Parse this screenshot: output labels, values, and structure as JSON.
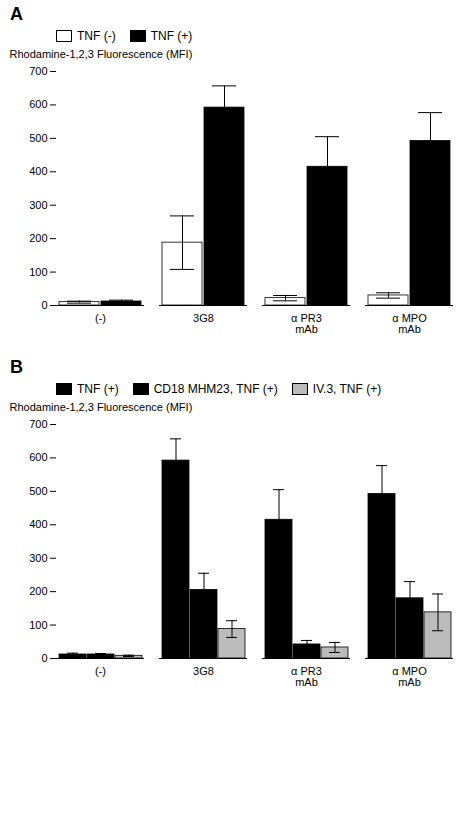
{
  "chart_data": [
    {
      "type": "bar",
      "title": "A",
      "categories": [
        "(-)",
        "3G8",
        "α PR3\nmAb",
        "α MPO\nmAb"
      ],
      "series": [
        {
          "name": "TNF (-)",
          "color": "white",
          "values": [
            10,
            188,
            22,
            30
          ],
          "errors": [
            3,
            80,
            8,
            8
          ]
        },
        {
          "name": "TNF (+)",
          "color": "black",
          "values": [
            12,
            592,
            415,
            492
          ],
          "errors": [
            4,
            65,
            90,
            85
          ]
        }
      ],
      "ylabel": "Rhodamine-1,2,3 Fluorescence (MFI)",
      "ylim": [
        0,
        700
      ],
      "yticks": [
        0,
        100,
        200,
        300,
        400,
        500,
        600,
        700
      ],
      "grid": false,
      "legend": "upper left"
    },
    {
      "type": "bar",
      "title": "B",
      "categories": [
        "(-)",
        "3G8",
        "α PR3\nmAb",
        "α MPO\nmAb"
      ],
      "series": [
        {
          "name": "TNF (+)",
          "color": "black",
          "values": [
            12,
            592,
            415,
            492
          ],
          "errors": [
            4,
            65,
            90,
            85
          ]
        },
        {
          "name": "CD18 MHM23, TNF (+)",
          "color": "black",
          "values": [
            12,
            205,
            42,
            180
          ],
          "errors": [
            3,
            50,
            12,
            50
          ]
        },
        {
          "name": "IV.3, TNF (+)",
          "color": "#bbbbbb",
          "values": [
            8,
            88,
            33,
            138
          ],
          "errors": [
            2,
            25,
            15,
            55
          ]
        }
      ],
      "ylabel": "Rhodamine-1,2,3 Fluorescence (MFI)",
      "ylim": [
        0,
        700
      ],
      "yticks": [
        0,
        100,
        200,
        300,
        400,
        500,
        600,
        700
      ],
      "grid": false,
      "legend": "upper left"
    }
  ]
}
